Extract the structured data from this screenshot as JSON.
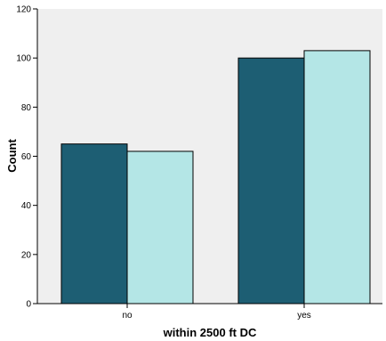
{
  "chart_data": {
    "type": "bar",
    "xlabel": "within 2500 ft DC",
    "ylabel": "Count",
    "categories": [
      "no",
      "yes"
    ],
    "series": [
      {
        "values": [
          65,
          100
        ],
        "color": "#1d5e73"
      },
      {
        "values": [
          62,
          103
        ],
        "color": "#b4e6e6"
      }
    ],
    "ylim": [
      0,
      120
    ],
    "yticks": [
      0,
      20,
      40,
      60,
      80,
      100,
      120
    ],
    "plot_background": "#efefef",
    "grid": false,
    "legend": "none"
  }
}
